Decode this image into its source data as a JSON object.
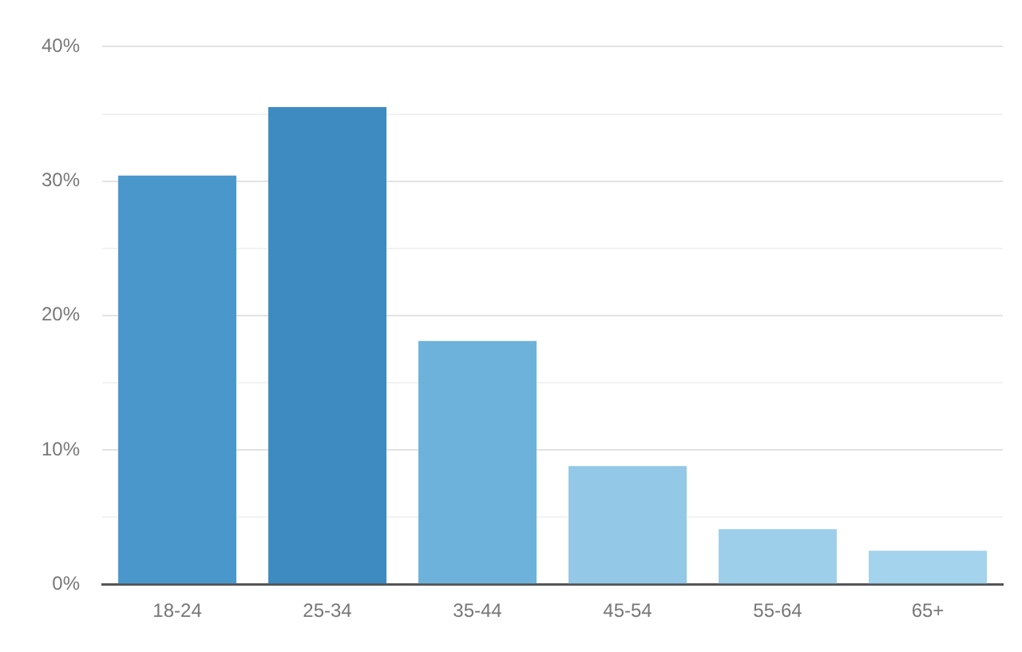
{
  "chart_data": {
    "type": "bar",
    "categories": [
      "18-24",
      "25-34",
      "35-44",
      "45-54",
      "55-64",
      "65+"
    ],
    "values": [
      30.4,
      35.5,
      18.1,
      8.8,
      4.1,
      2.5
    ],
    "colors": [
      "#4a98cb",
      "#3e8bc2",
      "#6db2da",
      "#93c8e6",
      "#9dcfeb",
      "#a4d3ed"
    ],
    "ylim": [
      0,
      40
    ],
    "yticks": [
      {
        "value": 0,
        "label": "0%"
      },
      {
        "value": 5,
        "label": null
      },
      {
        "value": 10,
        "label": "10%"
      },
      {
        "value": 15,
        "label": null
      },
      {
        "value": 20,
        "label": "20%"
      },
      {
        "value": 25,
        "label": null
      },
      {
        "value": 30,
        "label": "30%"
      },
      {
        "value": 35,
        "label": null
      },
      {
        "value": 40,
        "label": "40%"
      }
    ],
    "grid": "y",
    "legend": false
  }
}
